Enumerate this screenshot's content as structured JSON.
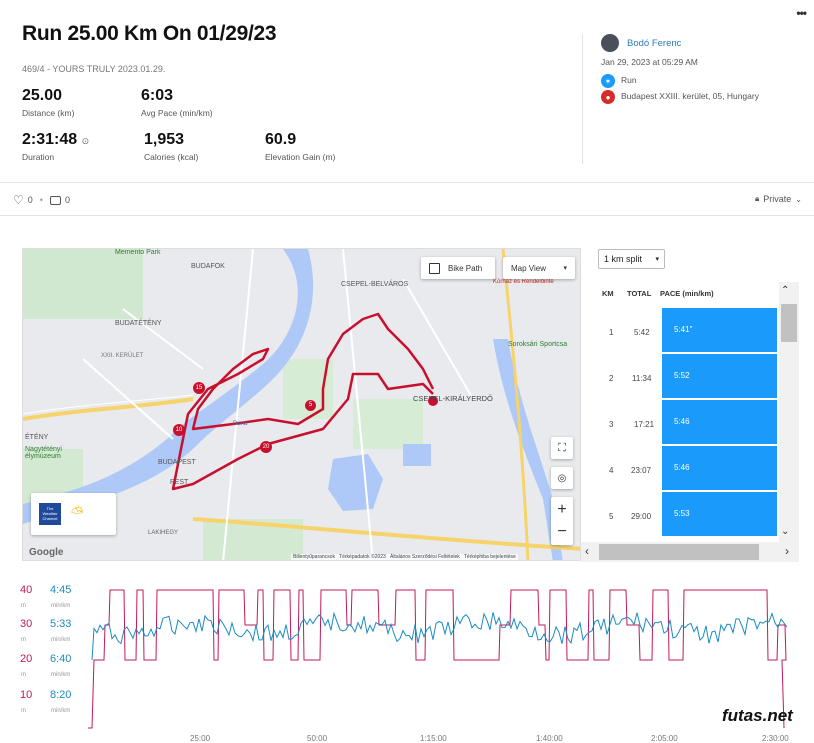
{
  "header": {
    "title": "Run 25.00 Km On 01/29/23",
    "subtitle": "469/4 - YOURS TRULY 2023.01.29.",
    "more_label": "•••"
  },
  "stats": [
    {
      "value": "25.00",
      "label": "Distance (km)"
    },
    {
      "value": "6:03",
      "label": "Avg Pace (min/km)"
    },
    {
      "value": "2:31:48",
      "label": "Duration"
    },
    {
      "value": "1,953",
      "label": "Calories (kcal)"
    },
    {
      "value": "60.9",
      "label": "Elevation Gain (m)"
    }
  ],
  "duration_icon": "⊙",
  "user": {
    "name": "Bodó Ferenc",
    "datetime": "Jan 29, 2023 at 05:29 AM",
    "activity": "Run",
    "location": "Budapest XXIII. kerület, 05, Hungary"
  },
  "social": {
    "likes": "0",
    "comments": "0",
    "privacy": "Private"
  },
  "map": {
    "bike_path_label": "Bike Path",
    "map_view_label": "Map View",
    "google_label": "Google",
    "attribution": "Billentyűparancsok   Térképadatok ©2023   Általános Szerződési Feltételek   Térképhiba bejelentése",
    "place_labels": [
      {
        "text": "Memento Park"
      },
      {
        "text": "BUDAFOK"
      },
      {
        "text": "CSEPEL-BELVÁROS"
      },
      {
        "text": "BUDATÉTÉNY"
      },
      {
        "text": "XXII. KERÜLET"
      },
      {
        "text": "CSEPEL-KIRÁLYERDŐ"
      },
      {
        "text": "BUDAPEST"
      },
      {
        "text": "PEST"
      },
      {
        "text": "LAKIHEGY"
      },
      {
        "text": "Soroksári Sportcsa"
      },
      {
        "text": "Nagytétényi élymúzeum"
      },
      {
        "text": "Kórház és Rendelőinté"
      },
      {
        "text": "Duna"
      },
      {
        "text": "ÉTÉNY"
      }
    ],
    "km_markers": [
      "5",
      "10",
      "15",
      "20"
    ],
    "weather_label": "The Weather Channel"
  },
  "splits": {
    "selector": "1 km split",
    "headers": [
      "KM",
      "TOTAL",
      "PACE (min/km)"
    ],
    "rows": [
      {
        "km": "1",
        "total": "5:42",
        "pace": "5:41\""
      },
      {
        "km": "2",
        "total": "11:34",
        "pace": "5:52"
      },
      {
        "km": "3",
        "total": "17:21",
        "pace": "5:46"
      },
      {
        "km": "4",
        "total": "23:07",
        "pace": "5:46"
      },
      {
        "km": "5",
        "total": "29:00",
        "pace": "5:53"
      }
    ]
  },
  "chart_data": {
    "type": "line",
    "series": [],
    "y_left_elevation": [
      "40",
      "30",
      "20",
      "10"
    ],
    "y_elev_unit": "m",
    "y_left_pace": [
      "4:45",
      "5:33",
      "6:40",
      "8:20"
    ],
    "y_pace_unit": "min/km",
    "x_ticks": [
      "25:00",
      "50:00",
      "1:15:00",
      "1:40:00",
      "2:05:00",
      "2:30:00"
    ],
    "colors": {
      "elevation": "#c2185b",
      "pace": "#1a8cc2"
    },
    "grid": false
  },
  "watermark": "futas.net"
}
